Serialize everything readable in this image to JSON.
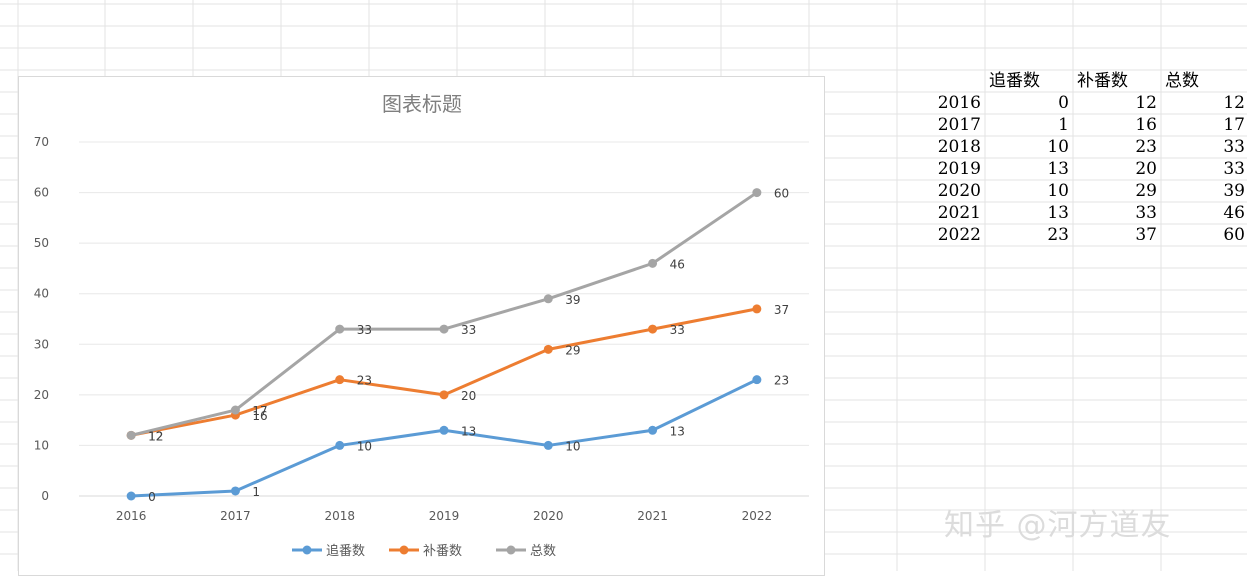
{
  "chart_data": {
    "type": "line",
    "title": "图表标题",
    "categories": [
      "2016",
      "2017",
      "2018",
      "2019",
      "2020",
      "2021",
      "2022"
    ],
    "series": [
      {
        "name": "追番数",
        "color": "#5b9bd5",
        "values": [
          0,
          1,
          10,
          13,
          10,
          13,
          23
        ]
      },
      {
        "name": "补番数",
        "color": "#ed7d31",
        "values": [
          12,
          16,
          23,
          20,
          29,
          33,
          37
        ]
      },
      {
        "name": "总数",
        "color": "#a5a5a5",
        "values": [
          12,
          17,
          33,
          33,
          39,
          46,
          60
        ]
      }
    ],
    "ylim": [
      0,
      70
    ],
    "yticks": [
      0,
      10,
      20,
      30,
      40,
      50,
      60,
      70
    ],
    "grid": true,
    "legend": "bottom",
    "data_labels": true
  },
  "table": {
    "headers": [
      "",
      "追番数",
      "补番数",
      "总数"
    ],
    "rows": [
      [
        "2016",
        "0",
        "12",
        "12"
      ],
      [
        "2017",
        "1",
        "16",
        "17"
      ],
      [
        "2018",
        "10",
        "23",
        "33"
      ],
      [
        "2019",
        "13",
        "20",
        "33"
      ],
      [
        "2020",
        "10",
        "29",
        "39"
      ],
      [
        "2021",
        "13",
        "33",
        "46"
      ],
      [
        "2022",
        "23",
        "37",
        "60"
      ]
    ]
  },
  "watermark": "知乎 @河方道友"
}
